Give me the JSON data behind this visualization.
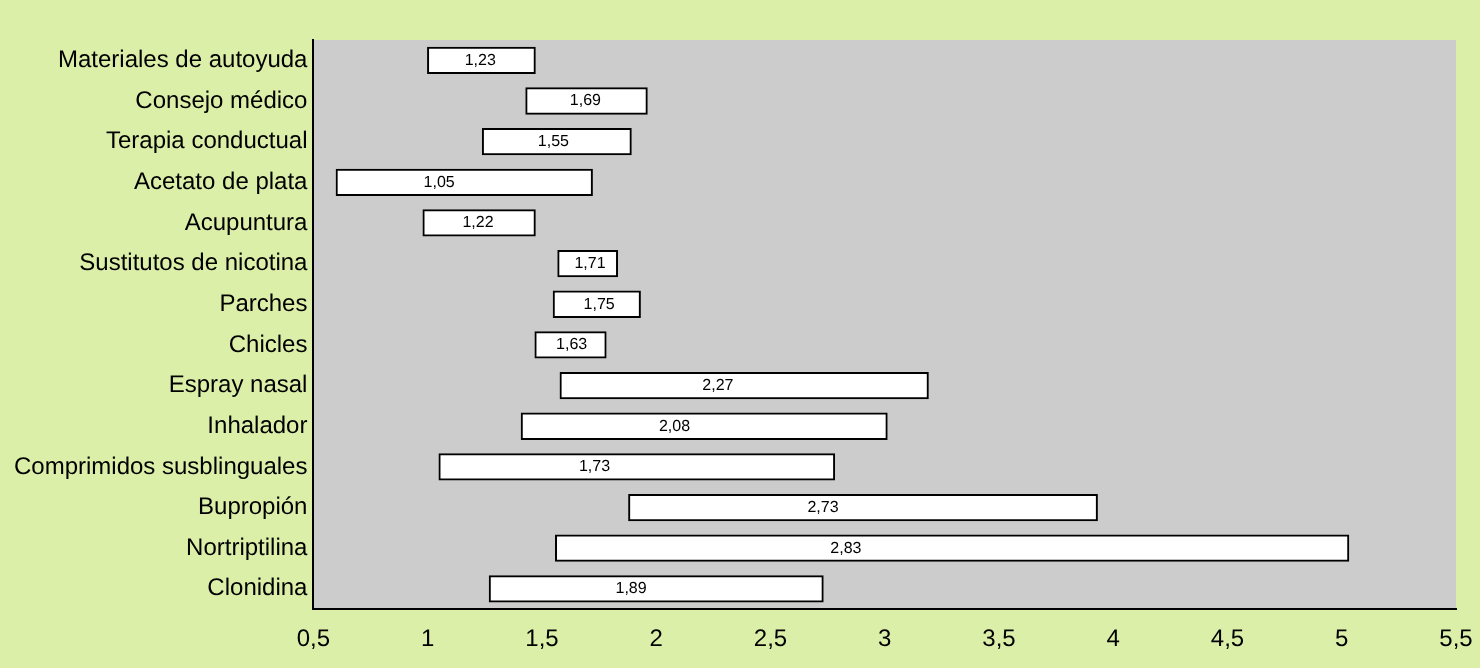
{
  "chart_data": {
    "type": "bar",
    "orientation": "horizontal",
    "categories": [
      "Materiales de autoyuda",
      "Consejo médico",
      "Terapia conductual",
      "Acetato de plata",
      "Acupuntura",
      "Sustitutos de nicotina",
      "Parches",
      "Chicles",
      "Espray nasal",
      "Inhalador",
      "Comprimidos susblinguales",
      "Bupropión",
      "Nortriptilina",
      "Clonidina"
    ],
    "base": [
      1.0,
      1.43,
      1.24,
      0.6,
      0.98,
      1.57,
      1.55,
      1.47,
      1.58,
      1.41,
      1.05,
      1.88,
      1.56,
      1.27
    ],
    "values": [
      0.47,
      0.53,
      0.65,
      1.12,
      0.49,
      0.26,
      0.38,
      0.31,
      1.61,
      1.6,
      1.73,
      2.05,
      3.47,
      1.46
    ],
    "annotations": [
      {
        "text": "1,23",
        "x": 1.23,
        "y": "Materiales de autoyuda"
      },
      {
        "text": "1,69",
        "x": 1.69,
        "y": "Consejo médico"
      },
      {
        "text": "1,55",
        "x": 1.55,
        "y": "Terapia conductual"
      },
      {
        "text": "1,05",
        "x": 1.05,
        "y": "Acetato de plata"
      },
      {
        "text": "1,22",
        "x": 1.22,
        "y": "Acupuntura"
      },
      {
        "text": "1,71",
        "x": 1.71,
        "y": "Sustitutos de nicotina"
      },
      {
        "text": "1,75",
        "x": 1.75,
        "y": "Parches"
      },
      {
        "text": "1,63",
        "x": 1.63,
        "y": "Chicles"
      },
      {
        "text": "2,27",
        "x": 2.27,
        "y": "Espray nasal"
      },
      {
        "text": "2,08",
        "x": 2.08,
        "y": "Inhalador"
      },
      {
        "text": "1,73",
        "x": 1.73,
        "y": "Comprimidos susblinguales"
      },
      {
        "text": "2,73",
        "x": 2.73,
        "y": "Bupropión"
      },
      {
        "text": "2,83",
        "x": 2.83,
        "y": "Nortriptilina"
      },
      {
        "text": "1,89",
        "x": 1.89,
        "y": "Clonidina"
      }
    ],
    "color": "#ffffff",
    "xlim": [
      0.5,
      5.5
    ],
    "xticks": [
      {
        "value": 0.5,
        "label": "0,5"
      },
      1,
      {
        "value": 1.5,
        "label": "1,5"
      },
      2,
      {
        "value": 2.5,
        "label": "2,5"
      },
      3,
      {
        "value": 3.5,
        "label": "3,5"
      },
      4,
      {
        "value": 4.5,
        "label": "4,5"
      },
      5,
      {
        "value": 5.5,
        "label": "5,5"
      }
    ],
    "grid": false,
    "legend": false
  }
}
